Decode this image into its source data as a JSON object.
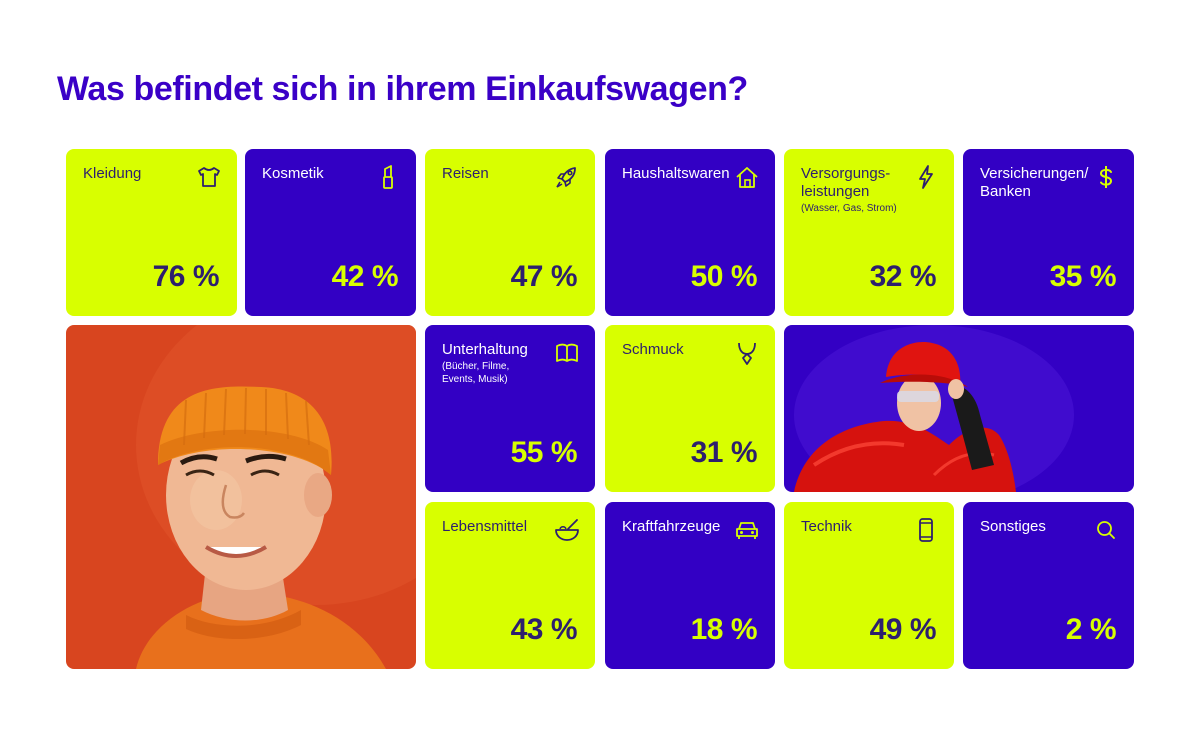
{
  "title": "Was befindet sich in ihrem Einkaufswagen?",
  "colors": {
    "lime": "#d8ff00",
    "purple": "#3300c4",
    "title": "#3a00c7",
    "dark_text": "#2d1f6e"
  },
  "chart_data": {
    "type": "table",
    "title": "Was befindet sich in ihrem Einkaufswagen?",
    "unit": "%",
    "categories": [
      {
        "label": "Kleidung",
        "sub": "",
        "value": 76,
        "display": "76 %",
        "icon": "shirt-icon",
        "theme": "lime"
      },
      {
        "label": "Kosmetik",
        "sub": "",
        "value": 42,
        "display": "42 %",
        "icon": "lipstick-icon",
        "theme": "purple"
      },
      {
        "label": "Reisen",
        "sub": "",
        "value": 47,
        "display": "47 %",
        "icon": "rocket-icon",
        "theme": "lime"
      },
      {
        "label": "Haushaltswaren",
        "sub": "",
        "value": 50,
        "display": "50 %",
        "icon": "house-icon",
        "theme": "purple"
      },
      {
        "label": "Versorgungs-\nleistungen",
        "sub": "(Wasser, Gas, Strom)",
        "value": 32,
        "display": "32 %",
        "icon": "lightning-icon",
        "theme": "lime"
      },
      {
        "label": "Versicherungen/\nBanken",
        "sub": "",
        "value": 35,
        "display": "35 %",
        "icon": "dollar-icon",
        "theme": "purple"
      },
      {
        "label": "Unterhaltung",
        "sub": "(Bücher, Filme,\nEvents, Musik)",
        "value": 55,
        "display": "55 %",
        "icon": "book-icon",
        "theme": "purple"
      },
      {
        "label": "Schmuck",
        "sub": "",
        "value": 31,
        "display": "31 %",
        "icon": "necklace-icon",
        "theme": "lime"
      },
      {
        "label": "Lebensmittel",
        "sub": "",
        "value": 43,
        "display": "43 %",
        "icon": "bowl-icon",
        "theme": "lime"
      },
      {
        "label": "Kraftfahrzeuge",
        "sub": "",
        "value": 18,
        "display": "18 %",
        "icon": "car-icon",
        "theme": "purple"
      },
      {
        "label": "Technik",
        "sub": "",
        "value": 49,
        "display": "49 %",
        "icon": "phone-icon",
        "theme": "lime"
      },
      {
        "label": "Sonstiges",
        "sub": "",
        "value": 2,
        "display": "2 %",
        "icon": "search-icon",
        "theme": "purple"
      }
    ]
  },
  "photos": [
    {
      "name": "man-orange-beanie-photo",
      "background": "#d8451f"
    },
    {
      "name": "woman-red-jacket-photo",
      "background": "#3300c4"
    }
  ]
}
